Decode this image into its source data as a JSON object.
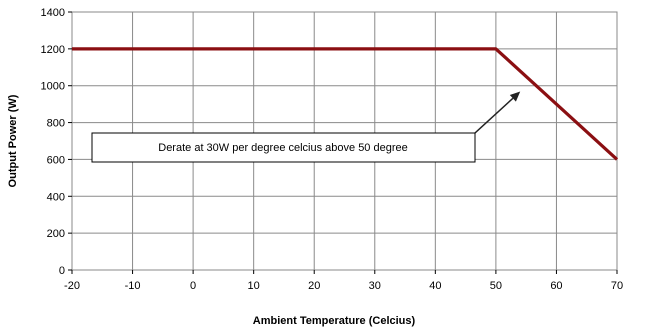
{
  "chart_data": {
    "type": "line",
    "xlabel": "Ambient Temperature (Celcius)",
    "ylabel": "Output Power (W)",
    "xlim": [
      -20,
      70
    ],
    "ylim": [
      0,
      1400
    ],
    "x_ticks": [
      -20,
      -10,
      0,
      10,
      20,
      30,
      40,
      50,
      60,
      70
    ],
    "y_ticks": [
      0,
      200,
      400,
      600,
      800,
      1000,
      1200,
      1400
    ],
    "grid": true,
    "legend": "none",
    "series": [
      {
        "color": "#8b0f12",
        "x": [
          -20,
          50,
          70
        ],
        "y": [
          1200,
          1200,
          600
        ]
      }
    ],
    "annotations": [
      {
        "text": "Derate at 30W per degree celcius above 50 degree",
        "arrow_target": [
          56,
          990
        ]
      }
    ]
  }
}
